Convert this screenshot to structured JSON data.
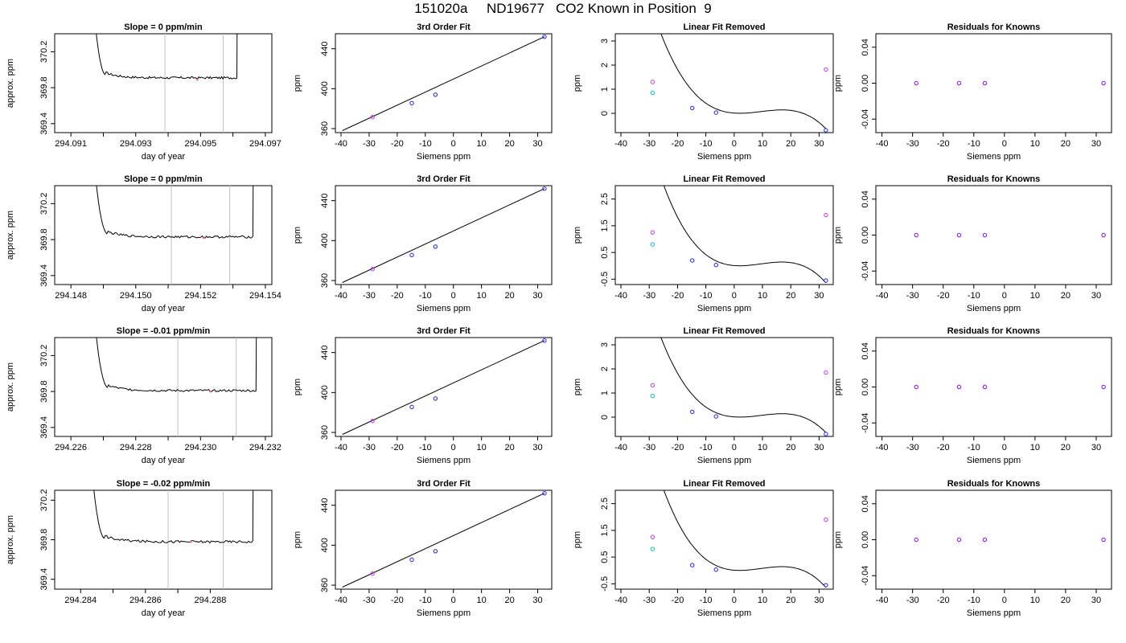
{
  "page_title": "151020a     ND19677   CO2 Known in Position  9",
  "colors": {
    "line": "#000000",
    "gray_marker": "#c0c0c0",
    "magenta": "#cc33ff",
    "cyan": "#00c0d0",
    "blue": "#2020ff",
    "purple": "#8800ff",
    "red_point": "#ff6060"
  },
  "chart_data": [
    {
      "type": "line",
      "title": "Slope =  0  ppm/min",
      "xlabel": "day of year",
      "ylabel": "approx. ppm",
      "xlim": [
        294.0905,
        294.0972
      ],
      "ylim": [
        369.3,
        370.4
      ],
      "xticks": [
        "294.091",
        "294.093",
        "294.095",
        "294.097"
      ],
      "yticks": [
        "369.4",
        "369.8",
        "370.2"
      ],
      "xstart": 294.0915,
      "xend": 294.0962,
      "baseline": 369.91,
      "vlines": [
        294.0939,
        294.0957
      ],
      "marker_x": 294.0949,
      "marker_y": 369.89
    },
    {
      "type": "line",
      "title": "3rd Order Fit",
      "xlabel": "Siemens ppm",
      "ylabel": "ppm",
      "xlim": [
        -42,
        35
      ],
      "ylim": [
        356,
        455
      ],
      "xticks": [
        "-40",
        "-30",
        "-20",
        "-10",
        "0",
        "10",
        "20",
        "30"
      ],
      "yticks": [
        "360",
        "400",
        "440"
      ],
      "points": [
        {
          "x": -28.8,
          "y": 371.5,
          "c": "magenta"
        },
        {
          "x": -14.8,
          "y": 385.5,
          "c": "blue"
        },
        {
          "x": -6.4,
          "y": 394.0,
          "c": "blue"
        },
        {
          "x": 32.4,
          "y": 452.0,
          "c": "blue"
        }
      ],
      "line": [
        [
          -39.5,
          358.0
        ],
        [
          32.4,
          452.0
        ]
      ]
    },
    {
      "type": "scatter",
      "title": "Linear Fit Removed",
      "xlabel": "Siemens ppm",
      "ylabel": "ppm",
      "xlim": [
        -42,
        35
      ],
      "ylim": [
        -0.8,
        3.3
      ],
      "xticks": [
        "-40",
        "-30",
        "-20",
        "-10",
        "0",
        "10",
        "20",
        "30"
      ],
      "yticks": [
        "0",
        "1",
        "2",
        "3"
      ],
      "points": [
        {
          "x": -28.8,
          "y": 1.3,
          "c": "magenta"
        },
        {
          "x": -28.8,
          "y": 0.85,
          "c": "cyan"
        },
        {
          "x": -14.8,
          "y": 0.22,
          "c": "blue"
        },
        {
          "x": -6.4,
          "y": 0.03,
          "c": "blue"
        },
        {
          "x": 32.4,
          "y": 1.82,
          "c": "magenta"
        },
        {
          "x": 32.4,
          "y": -0.7,
          "c": "blue"
        }
      ],
      "curve": {
        "a": -0.0002,
        "b": 0.00295,
        "c": 0.0046,
        "d": 0.0,
        "from": -39.5,
        "to": 32.4
      }
    },
    {
      "type": "scatter",
      "title": "Residuals for Knowns",
      "xlabel": "Siemens ppm",
      "ylabel": "ppm",
      "xlim": [
        -42,
        35
      ],
      "ylim": [
        -0.055,
        0.055
      ],
      "xticks": [
        "-40",
        "-30",
        "-20",
        "-10",
        "0",
        "10",
        "20",
        "30"
      ],
      "yticks": [
        "-0.04",
        "0.00",
        "0.04"
      ],
      "points": [
        {
          "x": -28.8,
          "y": 0,
          "c": "purple"
        },
        {
          "x": -14.8,
          "y": 0,
          "c": "purple"
        },
        {
          "x": -6.4,
          "y": 0,
          "c": "purple"
        },
        {
          "x": 32.4,
          "y": 0,
          "c": "purple"
        }
      ]
    },
    {
      "type": "line",
      "title": "Slope =  0  ppm/min",
      "xlabel": "day of year",
      "ylabel": "approx. ppm",
      "xlim": [
        294.1475,
        294.1542
      ],
      "ylim": [
        369.3,
        370.4
      ],
      "xticks": [
        "294.148",
        "294.150",
        "294.152",
        "294.154"
      ],
      "yticks": [
        "369.4",
        "369.8",
        "370.2"
      ],
      "xstart": 294.1485,
      "xend": 294.1537,
      "baseline": 369.83,
      "vlines": [
        294.1511,
        294.1529
      ],
      "marker_x": 294.1521,
      "marker_y": 369.82
    },
    {
      "type": "line",
      "title": "3rd Order Fit",
      "xlabel": "Siemens ppm",
      "ylabel": "ppm",
      "xlim": [
        -42,
        35
      ],
      "ylim": [
        356,
        455
      ],
      "xticks": [
        "-40",
        "-30",
        "-20",
        "-10",
        "0",
        "10",
        "20",
        "30"
      ],
      "yticks": [
        "360",
        "400",
        "440"
      ],
      "points": [
        {
          "x": -28.8,
          "y": 371.5,
          "c": "magenta"
        },
        {
          "x": -14.8,
          "y": 385.5,
          "c": "blue"
        },
        {
          "x": -6.4,
          "y": 394.0,
          "c": "blue"
        },
        {
          "x": 32.4,
          "y": 452.0,
          "c": "blue"
        }
      ],
      "line": [
        [
          -39.5,
          358.0
        ],
        [
          32.4,
          452.0
        ]
      ]
    },
    {
      "type": "scatter",
      "title": "Linear Fit Removed",
      "xlabel": "Siemens ppm",
      "ylabel": "ppm",
      "xlim": [
        -42,
        35
      ],
      "ylim": [
        -0.7,
        3.0
      ],
      "xticks": [
        "-40",
        "-30",
        "-20",
        "-10",
        "0",
        "10",
        "20",
        "30"
      ],
      "yticks": [
        "-0.5",
        "0.5",
        "1.5",
        "2.5"
      ],
      "points": [
        {
          "x": -28.8,
          "y": 1.25,
          "c": "magenta"
        },
        {
          "x": -28.8,
          "y": 0.8,
          "c": "cyan"
        },
        {
          "x": -14.8,
          "y": 0.2,
          "c": "blue"
        },
        {
          "x": -6.4,
          "y": 0.03,
          "c": "blue"
        },
        {
          "x": 32.4,
          "y": 1.9,
          "c": "magenta"
        },
        {
          "x": 32.4,
          "y": -0.55,
          "c": "blue"
        }
      ],
      "curve": {
        "a": -0.00019,
        "b": 0.0028,
        "c": 0.0045,
        "d": 0.0,
        "from": -39.5,
        "to": 32.4
      }
    },
    {
      "type": "scatter",
      "title": "Residuals for Knowns",
      "xlabel": "Siemens ppm",
      "ylabel": "ppm",
      "xlim": [
        -42,
        35
      ],
      "ylim": [
        -0.055,
        0.055
      ],
      "xticks": [
        "-40",
        "-30",
        "-20",
        "-10",
        "0",
        "10",
        "20",
        "30"
      ],
      "yticks": [
        "-0.04",
        "0.00",
        "0.04"
      ],
      "points": [
        {
          "x": -28.8,
          "y": 0,
          "c": "purple"
        },
        {
          "x": -14.8,
          "y": 0,
          "c": "purple"
        },
        {
          "x": -6.4,
          "y": 0,
          "c": "purple"
        },
        {
          "x": 32.4,
          "y": 0,
          "c": "purple"
        }
      ]
    },
    {
      "type": "line",
      "title": "Slope =  -0.01  ppm/min",
      "xlabel": "day of year",
      "ylabel": "approx. ppm",
      "xlim": [
        294.2255,
        294.2322
      ],
      "ylim": [
        369.3,
        370.4
      ],
      "xticks": [
        "294.226",
        "294.228",
        "294.230",
        "294.232"
      ],
      "yticks": [
        "369.4",
        "369.8",
        "370.2"
      ],
      "xstart": 294.2265,
      "xend": 294.2318,
      "baseline": 369.81,
      "vlines": [
        294.2293,
        294.2311
      ],
      "marker_x": 294.2303,
      "marker_y": 369.8
    },
    {
      "type": "line",
      "title": "3rd Order Fit",
      "xlabel": "Siemens ppm",
      "ylabel": "ppm",
      "xlim": [
        -42,
        35
      ],
      "ylim": [
        356,
        455
      ],
      "xticks": [
        "-40",
        "-30",
        "-20",
        "-10",
        "0",
        "10",
        "20",
        "30"
      ],
      "yticks": [
        "360",
        "400",
        "440"
      ],
      "points": [
        {
          "x": -28.8,
          "y": 371.5,
          "c": "magenta"
        },
        {
          "x": -14.8,
          "y": 385.5,
          "c": "blue"
        },
        {
          "x": -6.4,
          "y": 394.0,
          "c": "blue"
        },
        {
          "x": 32.4,
          "y": 452.0,
          "c": "blue"
        }
      ],
      "line": [
        [
          -39.5,
          358.0
        ],
        [
          32.4,
          452.0
        ]
      ]
    },
    {
      "type": "scatter",
      "title": "Linear Fit Removed",
      "xlabel": "Siemens ppm",
      "ylabel": "ppm",
      "xlim": [
        -42,
        35
      ],
      "ylim": [
        -0.8,
        3.3
      ],
      "xticks": [
        "-40",
        "-30",
        "-20",
        "-10",
        "0",
        "10",
        "20",
        "30"
      ],
      "yticks": [
        "0",
        "1",
        "2",
        "3"
      ],
      "points": [
        {
          "x": -28.8,
          "y": 1.32,
          "c": "magenta"
        },
        {
          "x": -28.8,
          "y": 0.88,
          "c": "cyan"
        },
        {
          "x": -14.8,
          "y": 0.22,
          "c": "blue"
        },
        {
          "x": -6.4,
          "y": 0.03,
          "c": "blue"
        },
        {
          "x": 32.4,
          "y": 1.85,
          "c": "magenta"
        },
        {
          "x": 32.4,
          "y": -0.7,
          "c": "blue"
        }
      ],
      "curve": {
        "a": -0.0002,
        "b": 0.00295,
        "c": 0.0046,
        "d": 0.0,
        "from": -39.5,
        "to": 32.4
      }
    },
    {
      "type": "scatter",
      "title": "Residuals for Knowns",
      "xlabel": "Siemens ppm",
      "ylabel": "ppm",
      "xlim": [
        -42,
        35
      ],
      "ylim": [
        -0.055,
        0.055
      ],
      "xticks": [
        "-40",
        "-30",
        "-20",
        "-10",
        "0",
        "10",
        "20",
        "30"
      ],
      "yticks": [
        "-0.04",
        "0.00",
        "0.04"
      ],
      "points": [
        {
          "x": -28.8,
          "y": 0,
          "c": "purple"
        },
        {
          "x": -14.8,
          "y": 0,
          "c": "purple"
        },
        {
          "x": -6.4,
          "y": 0,
          "c": "purple"
        },
        {
          "x": 32.4,
          "y": 0,
          "c": "purple"
        }
      ]
    },
    {
      "type": "line",
      "title": "Slope =  -0.02  ppm/min",
      "xlabel": "day of year",
      "ylabel": "approx. ppm",
      "xlim": [
        294.2832,
        294.2899
      ],
      "ylim": [
        369.3,
        370.3
      ],
      "xticks": [
        "294.284",
        "294.286",
        "294.288"
      ],
      "yticks": [
        "369.4",
        "369.8",
        "370.2"
      ],
      "xstart": 294.2841,
      "xend": 294.2894,
      "baseline": 369.78,
      "vlines": [
        294.2867,
        294.2884
      ],
      "marker_x": 294.2874,
      "marker_y": 369.78
    },
    {
      "type": "line",
      "title": "3rd Order Fit",
      "xlabel": "Siemens ppm",
      "ylabel": "ppm",
      "xlim": [
        -42,
        35
      ],
      "ylim": [
        356,
        455
      ],
      "xticks": [
        "-40",
        "-30",
        "-20",
        "-10",
        "0",
        "10",
        "20",
        "30"
      ],
      "yticks": [
        "360",
        "400",
        "440"
      ],
      "points": [
        {
          "x": -28.8,
          "y": 371.5,
          "c": "magenta"
        },
        {
          "x": -14.8,
          "y": 385.5,
          "c": "blue"
        },
        {
          "x": -6.4,
          "y": 394.0,
          "c": "blue"
        },
        {
          "x": 32.4,
          "y": 452.0,
          "c": "blue"
        }
      ],
      "line": [
        [
          -39.5,
          358.0
        ],
        [
          32.4,
          452.0
        ]
      ]
    },
    {
      "type": "scatter",
      "title": "Linear Fit Removed",
      "xlabel": "Siemens ppm",
      "ylabel": "ppm",
      "xlim": [
        -42,
        35
      ],
      "ylim": [
        -0.7,
        3.0
      ],
      "xticks": [
        "-40",
        "-30",
        "-20",
        "-10",
        "0",
        "10",
        "20",
        "30"
      ],
      "yticks": [
        "-0.5",
        "0.5",
        "1.5",
        "2.5"
      ],
      "points": [
        {
          "x": -28.8,
          "y": 1.25,
          "c": "magenta"
        },
        {
          "x": -28.8,
          "y": 0.8,
          "c": "cyan"
        },
        {
          "x": -14.8,
          "y": 0.2,
          "c": "blue"
        },
        {
          "x": -6.4,
          "y": 0.03,
          "c": "blue"
        },
        {
          "x": 32.4,
          "y": 1.9,
          "c": "magenta"
        },
        {
          "x": 32.4,
          "y": -0.55,
          "c": "blue"
        }
      ],
      "curve": {
        "a": -0.00019,
        "b": 0.0028,
        "c": 0.0045,
        "d": 0.0,
        "from": -39.5,
        "to": 32.4
      }
    },
    {
      "type": "scatter",
      "title": "Residuals for Knowns",
      "xlabel": "Siemens ppm",
      "ylabel": "ppm",
      "xlim": [
        -42,
        35
      ],
      "ylim": [
        -0.055,
        0.055
      ],
      "xticks": [
        "-40",
        "-30",
        "-20",
        "-10",
        "0",
        "10",
        "20",
        "30"
      ],
      "yticks": [
        "-0.04",
        "0.00",
        "0.04"
      ],
      "points": [
        {
          "x": -28.8,
          "y": 0,
          "c": "purple"
        },
        {
          "x": -14.8,
          "y": 0,
          "c": "purple"
        },
        {
          "x": -6.4,
          "y": 0,
          "c": "purple"
        },
        {
          "x": 32.4,
          "y": 0,
          "c": "purple"
        }
      ]
    }
  ]
}
